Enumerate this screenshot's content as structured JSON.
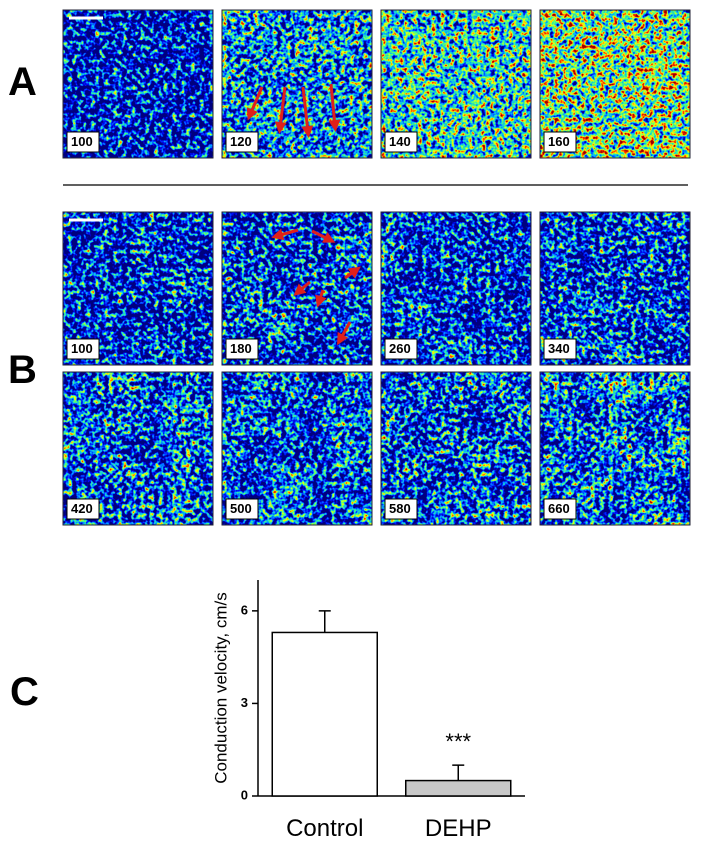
{
  "panels": [
    {
      "label": "A",
      "frames": [
        "100",
        "120",
        "140",
        "160"
      ]
    },
    {
      "label": "B",
      "frames": [
        "100",
        "180",
        "260",
        "340",
        "420",
        "500",
        "580",
        "660"
      ]
    },
    {
      "label": "C"
    }
  ],
  "chart_data": {
    "type": "bar",
    "ylabel": "Conduction velocity, cm/s",
    "categories": [
      "Control",
      "DEHP"
    ],
    "values": [
      5.3,
      0.5
    ],
    "errors": [
      0.7,
      0.5
    ],
    "colors": [
      "#ffffff",
      "#c8c8c8"
    ],
    "significance": [
      null,
      "***"
    ],
    "ylim": [
      0,
      7
    ],
    "yticks": [
      0,
      3,
      6
    ]
  }
}
